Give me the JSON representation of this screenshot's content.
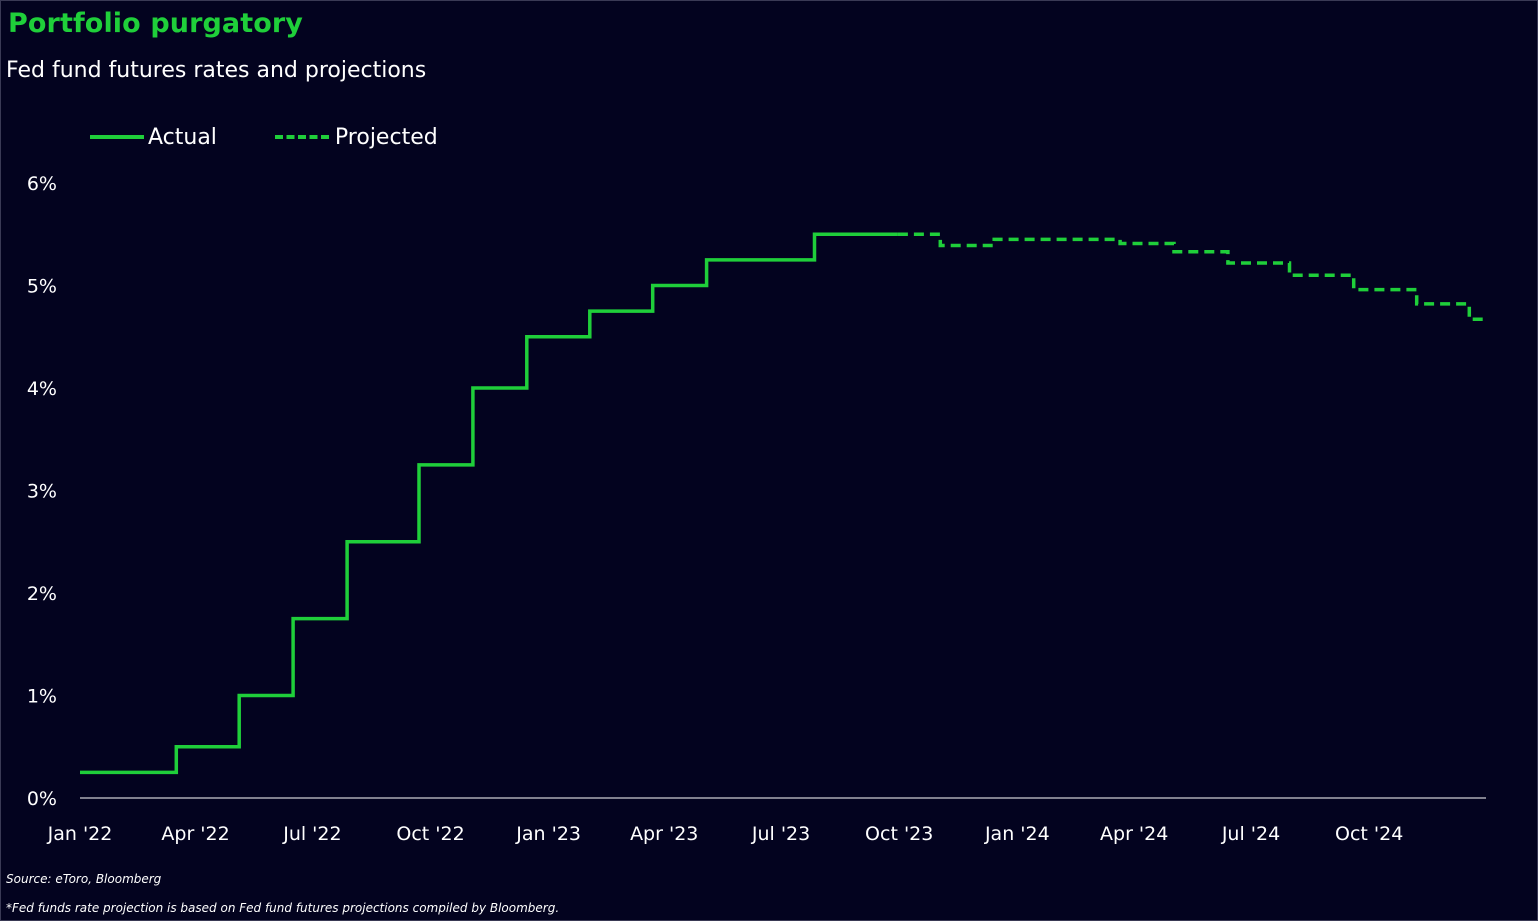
{
  "chart_data": {
    "type": "line",
    "title": "Portfolio purgatory",
    "subtitle": "Fed fund futures rates and projections",
    "y_ticks": [
      "0%",
      "1%",
      "2%",
      "3%",
      "4%",
      "5%",
      "6%"
    ],
    "ylim": [
      0,
      6
    ],
    "x_ticks": [
      "Jan '22",
      "Apr '22",
      "Jul '22",
      "Oct '22",
      "Jan '23",
      "Apr '23",
      "Jul '23",
      "Oct '23",
      "Jan '24",
      "Apr '24",
      "Jul '24",
      "Oct '24"
    ],
    "xlim": [
      "2022-01-01",
      "2024-12-31"
    ],
    "legend_position": "top-left",
    "grid": false,
    "line_color": "#1fcf3a",
    "series": [
      {
        "name": "Actual",
        "style": "solid",
        "step": true,
        "points": [
          {
            "x": "2022-01-01",
            "y": 0.25
          },
          {
            "x": "2022-03-17",
            "y": 0.5
          },
          {
            "x": "2022-05-05",
            "y": 1.0
          },
          {
            "x": "2022-06-16",
            "y": 1.75
          },
          {
            "x": "2022-07-28",
            "y": 2.5
          },
          {
            "x": "2022-09-22",
            "y": 3.25
          },
          {
            "x": "2022-11-03",
            "y": 4.0
          },
          {
            "x": "2022-12-15",
            "y": 4.5
          },
          {
            "x": "2023-02-02",
            "y": 4.75
          },
          {
            "x": "2023-03-23",
            "y": 5.0
          },
          {
            "x": "2023-05-04",
            "y": 5.25
          },
          {
            "x": "2023-07-27",
            "y": 5.5
          },
          {
            "x": "2023-09-30",
            "y": 5.5
          }
        ]
      },
      {
        "name": "Projected",
        "style": "dashed",
        "step": true,
        "points": [
          {
            "x": "2023-09-30",
            "y": 5.5
          },
          {
            "x": "2023-11-02",
            "y": 5.39
          },
          {
            "x": "2023-12-14",
            "y": 5.45
          },
          {
            "x": "2024-02-01",
            "y": 5.45
          },
          {
            "x": "2024-03-21",
            "y": 5.41
          },
          {
            "x": "2024-05-02",
            "y": 5.33
          },
          {
            "x": "2024-06-13",
            "y": 5.22
          },
          {
            "x": "2024-07-31",
            "y": 5.1
          },
          {
            "x": "2024-09-19",
            "y": 4.96
          },
          {
            "x": "2024-11-07",
            "y": 4.82
          },
          {
            "x": "2024-12-18",
            "y": 4.67
          },
          {
            "x": "2024-12-31",
            "y": 4.67
          }
        ]
      }
    ],
    "source": "Source: eToro, Bloomberg",
    "footnote": "*Fed funds rate projection is based on Fed fund futures projections compiled by Bloomberg."
  }
}
